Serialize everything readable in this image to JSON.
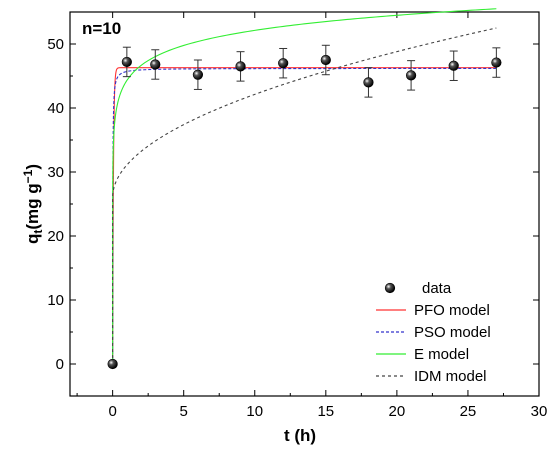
{
  "chart_data": {
    "type": "scatter",
    "annotation": "n=10",
    "xlabel": "t (h)",
    "ylabel_main": "q",
    "ylabel_sub": "t",
    "ylabel_unit": "(mg g",
    "ylabel_exp": "−1",
    "ylabel_close": ")",
    "xlim": [
      -3,
      30
    ],
    "ylim": [
      -5,
      55
    ],
    "xticks": [
      0,
      5,
      10,
      15,
      20,
      25,
      30
    ],
    "yticks": [
      0,
      10,
      20,
      30,
      40,
      50
    ],
    "legend_position": "bottom-right",
    "grid": false,
    "data_series": {
      "name": "data",
      "x": [
        0,
        1,
        3,
        6,
        9,
        12,
        15,
        18,
        21,
        24,
        27
      ],
      "y": [
        0,
        47.2,
        46.8,
        45.2,
        46.5,
        47.0,
        47.5,
        44.0,
        45.1,
        46.6,
        47.1
      ],
      "err": [
        0,
        2.3,
        2.3,
        2.3,
        2.3,
        2.3,
        2.3,
        2.3,
        2.3,
        2.3,
        2.3
      ]
    },
    "models": [
      {
        "name": "PFO model",
        "color": "#ff3333",
        "dash": "",
        "kind": "pfo",
        "qe": 46.3,
        "k": 18
      },
      {
        "name": "PSO model",
        "color": "#3333cc",
        "dash": "3,2",
        "kind": "pso",
        "qe": 46.2,
        "k": 2.0
      },
      {
        "name": "E model",
        "color": "#33ee33",
        "dash": "",
        "kind": "elovich",
        "a": 44.3,
        "b": 3.4
      },
      {
        "name": "IDM model",
        "color": "#444444",
        "dash": "3,3",
        "kind": "idm",
        "c": 26.0,
        "k": 5.1
      }
    ]
  }
}
